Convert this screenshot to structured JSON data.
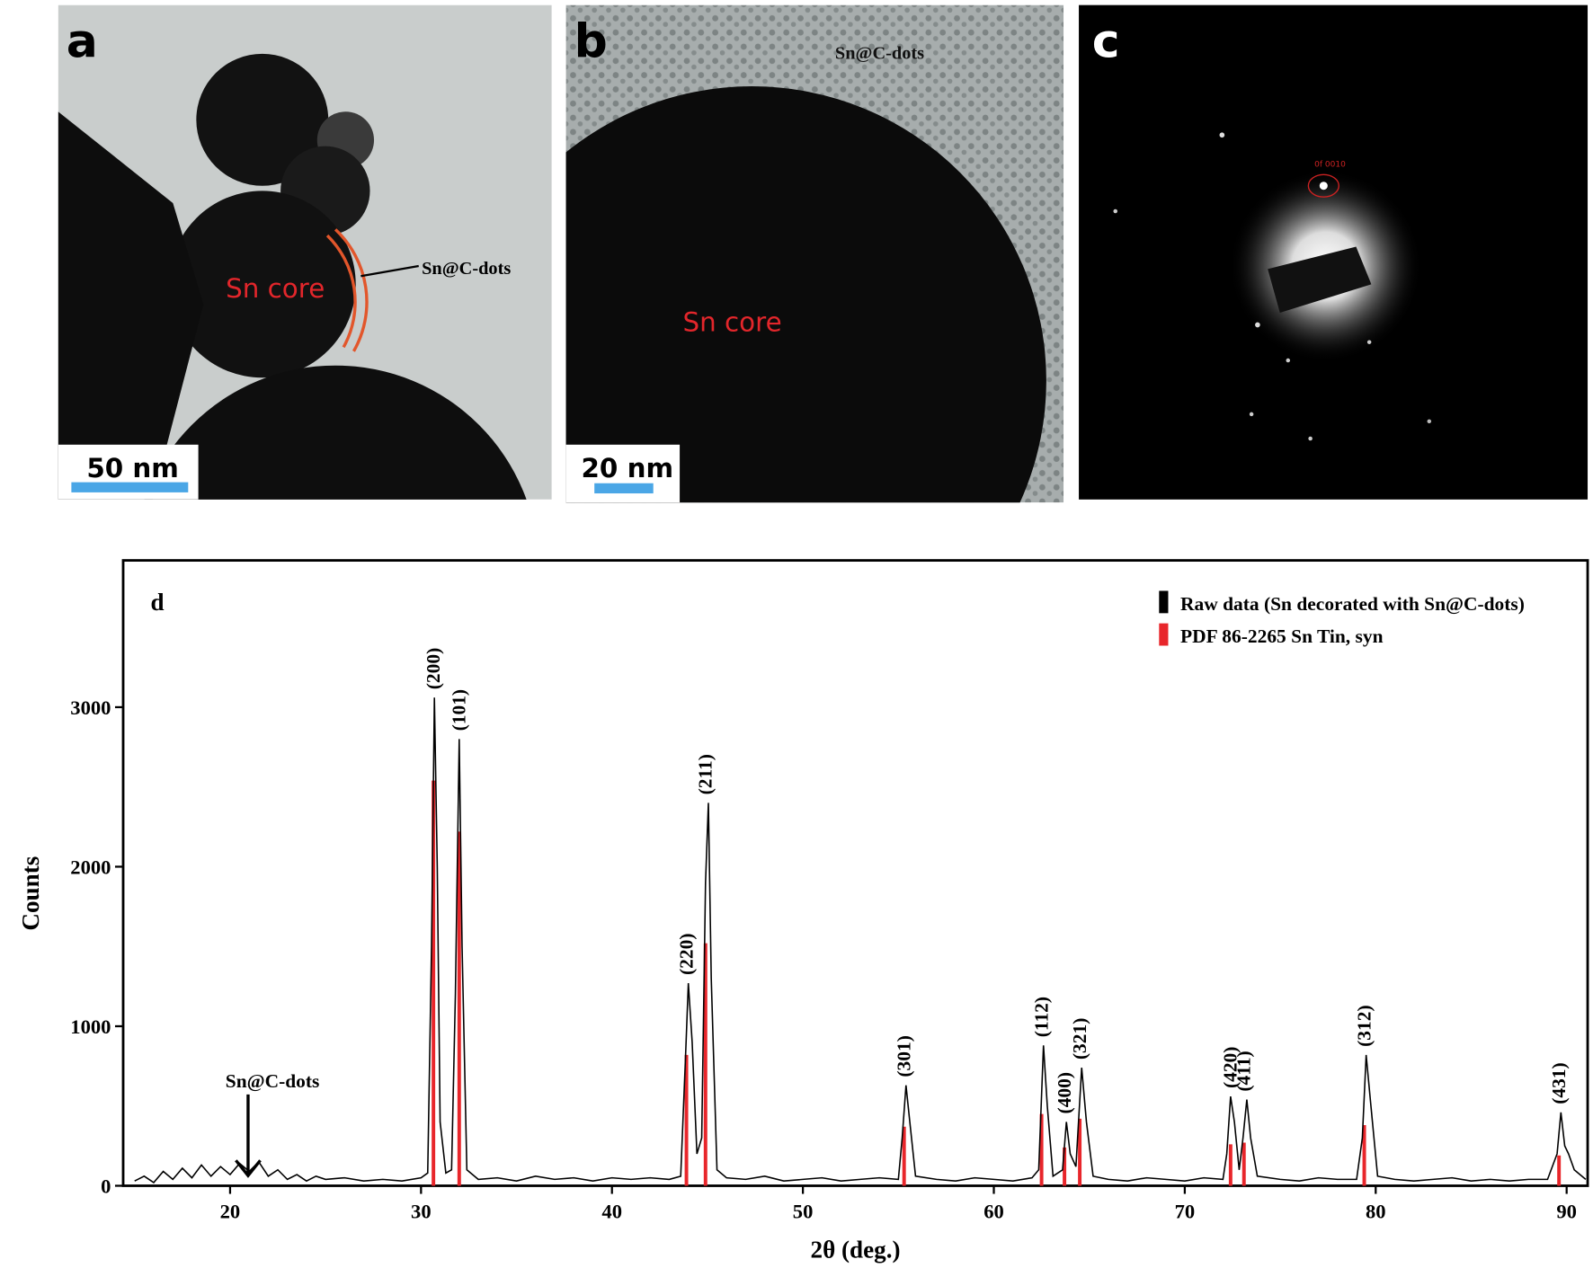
{
  "panels": [
    {
      "letter": "a",
      "labels": [
        "Sn core",
        "Sn@C-dots"
      ],
      "scale_bar": "50 nm"
    },
    {
      "letter": "b",
      "labels": [
        "Sn@C-dots",
        "Sn core"
      ],
      "scale_bar": "20 nm"
    },
    {
      "letter": "c",
      "labels": [
        "0f 0010"
      ]
    }
  ],
  "chart_data": {
    "type": "line",
    "panel_letter": "d",
    "xlabel": "2θ (deg.)",
    "ylabel": "Counts",
    "xlim": [
      14.4,
      91.1
    ],
    "ylim": [
      0,
      3920
    ],
    "xticks": [
      20,
      30,
      40,
      50,
      60,
      70,
      80,
      90
    ],
    "yticks": [
      0,
      1000,
      2000,
      3000
    ],
    "legend": "upper right",
    "annotation": "Sn@C-dots",
    "series": [
      {
        "name": "Raw data (Sn decorated with Sn@C-dots)",
        "color": "#000000",
        "type": "line",
        "x": [
          15,
          15.5,
          16,
          16.5,
          17,
          17.5,
          18,
          18.5,
          19,
          19.5,
          20,
          20.5,
          21,
          21.5,
          22,
          22.5,
          23,
          23.5,
          24,
          24.5,
          25,
          26,
          27,
          28,
          29,
          30,
          30.35,
          30.55,
          30.7,
          30.85,
          31.0,
          31.3,
          31.6,
          31.8,
          32.0,
          32.15,
          32.4,
          33,
          34,
          35,
          36,
          37,
          38,
          39,
          40,
          41,
          42,
          43,
          43.6,
          43.85,
          44.0,
          44.2,
          44.45,
          44.7,
          44.9,
          45.05,
          45.2,
          45.5,
          46,
          47,
          48,
          49,
          50,
          51,
          52,
          53,
          54,
          55,
          55.2,
          55.4,
          55.6,
          55.9,
          57,
          58,
          59,
          60,
          61,
          62,
          62.35,
          62.6,
          62.8,
          63.1,
          63.6,
          63.8,
          64.0,
          64.3,
          64.6,
          64.85,
          65.2,
          66,
          67,
          68,
          69,
          70,
          71,
          72,
          72.2,
          72.4,
          72.6,
          72.85,
          73.05,
          73.25,
          73.45,
          73.8,
          75,
          76,
          77,
          78,
          79,
          79.3,
          79.5,
          79.75,
          80.1,
          81,
          82,
          83,
          84,
          85,
          86,
          87,
          88,
          89,
          89.5,
          89.7,
          89.9,
          90.1,
          90.4,
          91
        ],
        "values": [
          30,
          60,
          20,
          90,
          40,
          110,
          50,
          130,
          60,
          120,
          70,
          140,
          90,
          150,
          60,
          100,
          40,
          70,
          30,
          60,
          40,
          50,
          30,
          40,
          30,
          50,
          80,
          1500,
          3060,
          2000,
          400,
          80,
          100,
          1200,
          2800,
          1500,
          100,
          40,
          50,
          30,
          60,
          40,
          50,
          30,
          50,
          40,
          50,
          40,
          60,
          800,
          1270,
          900,
          200,
          300,
          1900,
          2400,
          1300,
          100,
          50,
          40,
          60,
          30,
          40,
          50,
          30,
          40,
          50,
          40,
          300,
          630,
          400,
          60,
          40,
          30,
          50,
          40,
          30,
          50,
          100,
          880,
          500,
          60,
          100,
          400,
          200,
          120,
          740,
          400,
          60,
          40,
          30,
          50,
          40,
          30,
          50,
          40,
          200,
          560,
          400,
          100,
          300,
          540,
          300,
          60,
          40,
          30,
          50,
          40,
          40,
          300,
          820,
          500,
          60,
          40,
          30,
          40,
          50,
          30,
          40,
          30,
          40,
          40,
          200,
          460,
          250,
          200,
          100,
          40
        ]
      },
      {
        "name": "PDF 86-2265 Sn Tin, syn",
        "color": "#e8262b",
        "type": "stick",
        "x": [
          30.65,
          32.0,
          43.9,
          44.9,
          55.3,
          62.5,
          63.7,
          64.5,
          72.4,
          73.1,
          79.4,
          89.6
        ],
        "values": [
          2540,
          2220,
          820,
          1520,
          370,
          450,
          240,
          420,
          260,
          270,
          380,
          190
        ],
        "labels": [
          "(200)",
          "(101)",
          "(220)",
          "(211)",
          "(301)",
          "(112)",
          "(400)",
          "(321)",
          "(420)",
          "(411)",
          "(312)",
          "(431)"
        ]
      }
    ]
  }
}
